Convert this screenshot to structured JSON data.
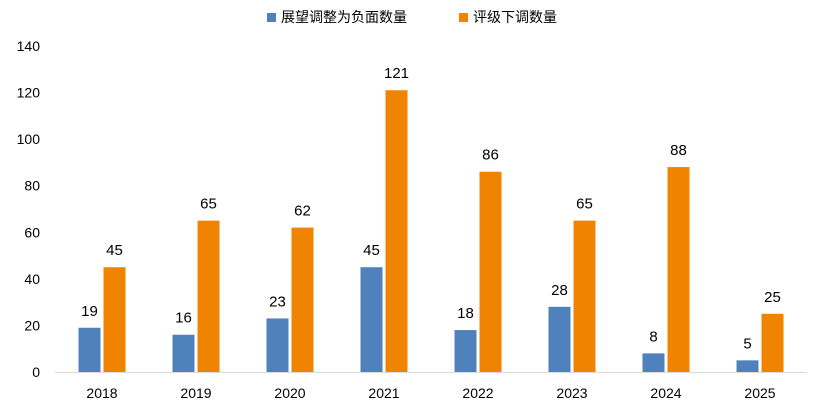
{
  "chart_data": {
    "type": "bar",
    "title": "",
    "xlabel": "",
    "ylabel": "",
    "categories": [
      "2018",
      "2019",
      "2020",
      "2021",
      "2022",
      "2023",
      "2024",
      "2025"
    ],
    "ylim": [
      0,
      140
    ],
    "yticks": [
      "0",
      "20",
      "40",
      "60",
      "80",
      "100",
      "120",
      "140"
    ],
    "grid": false,
    "legend_position": "top-center",
    "series": [
      {
        "name": "展望调整为负面数量",
        "color": "#4F81BD",
        "values": [
          19,
          16,
          23,
          45,
          18,
          28,
          8,
          5
        ]
      },
      {
        "name": "评级下调数量",
        "color": "#F08300",
        "values": [
          45,
          65,
          62,
          121,
          86,
          65,
          88,
          25
        ]
      }
    ]
  }
}
